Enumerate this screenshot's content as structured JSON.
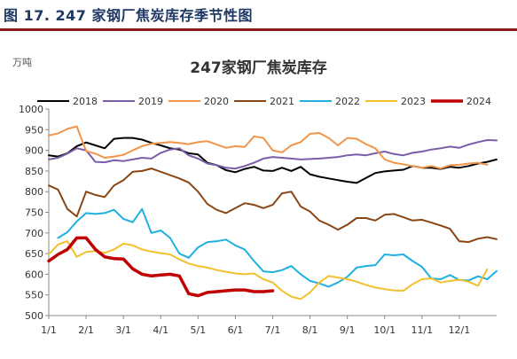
{
  "figure": {
    "label": "图 17.",
    "title": "247 家钢厂焦炭库存季节性图"
  },
  "chart_data": {
    "type": "line",
    "title": "247家钢厂焦炭库存",
    "unit": "万吨",
    "xlabel": "",
    "ylabel": "",
    "ylim": [
      500,
      1000
    ],
    "yticks": [
      500,
      550,
      600,
      650,
      700,
      750,
      800,
      850,
      900,
      950,
      1000
    ],
    "xlim": [
      0,
      12
    ],
    "xticks": [
      {
        "x": 0,
        "label": "1/1"
      },
      {
        "x": 1,
        "label": "2/1"
      },
      {
        "x": 2,
        "label": "3/1"
      },
      {
        "x": 3,
        "label": "4/1"
      },
      {
        "x": 4,
        "label": "5/1"
      },
      {
        "x": 5,
        "label": "6/1"
      },
      {
        "x": 6,
        "label": "7/1"
      },
      {
        "x": 7,
        "label": "8/1"
      },
      {
        "x": 8,
        "label": "9/1"
      },
      {
        "x": 9,
        "label": "10/1"
      },
      {
        "x": 10,
        "label": "11/1"
      },
      {
        "x": 11,
        "label": "12/1"
      }
    ],
    "x_unit_note": "x in months since 1/1",
    "legend_position": "top",
    "grid": false,
    "series": [
      {
        "name": "2018",
        "color": "#000000",
        "width": 2,
        "x": [
          0.0,
          0.25,
          0.5,
          0.75,
          1.0,
          1.25,
          1.5,
          1.75,
          2.0,
          2.25,
          2.5,
          2.75,
          3.0,
          3.25,
          3.5,
          3.75,
          4.0,
          4.25,
          4.5,
          4.75,
          5.0,
          5.25,
          5.5,
          5.75,
          6.0,
          6.25,
          6.5,
          6.75,
          7.0,
          7.25,
          7.5,
          7.75,
          8.0,
          8.25,
          8.5,
          8.75,
          9.0,
          9.25,
          9.5,
          9.75,
          10.0,
          10.25,
          10.5,
          10.75,
          11.0,
          11.25,
          11.5,
          11.75,
          12.0
        ],
        "y": [
          888,
          885,
          893,
          910,
          919,
          912,
          905,
          928,
          930,
          930,
          926,
          918,
          912,
          905,
          902,
          893,
          890,
          870,
          864,
          852,
          847,
          855,
          860,
          851,
          850,
          858,
          850,
          860,
          842,
          836,
          832,
          828,
          824,
          821,
          833,
          845,
          849,
          851,
          853,
          862,
          858,
          858,
          855,
          860,
          858,
          862,
          868,
          872,
          878
        ]
      },
      {
        "name": "2019",
        "color": "#7b5ea7",
        "width": 2,
        "x": [
          0.0,
          0.25,
          0.5,
          0.75,
          1.0,
          1.25,
          1.5,
          1.75,
          2.0,
          2.25,
          2.5,
          2.75,
          3.0,
          3.25,
          3.5,
          3.75,
          4.0,
          4.25,
          4.5,
          4.75,
          5.0,
          5.25,
          5.5,
          5.75,
          6.0,
          6.25,
          6.5,
          6.75,
          7.0,
          7.25,
          7.5,
          7.75,
          8.0,
          8.25,
          8.5,
          8.75,
          9.0,
          9.25,
          9.5,
          9.75,
          10.0,
          10.25,
          10.5,
          10.75,
          11.0,
          11.25,
          11.5,
          11.75,
          12.0
        ],
        "y": [
          878,
          882,
          892,
          905,
          900,
          872,
          871,
          876,
          874,
          878,
          882,
          880,
          894,
          902,
          905,
          888,
          880,
          868,
          864,
          858,
          856,
          862,
          870,
          880,
          884,
          882,
          880,
          878,
          879,
          880,
          882,
          884,
          888,
          890,
          888,
          893,
          897,
          891,
          888,
          894,
          897,
          902,
          905,
          909,
          906,
          914,
          920,
          925,
          924
        ]
      },
      {
        "name": "2020",
        "color": "#f0954a",
        "width": 2,
        "x": [
          0.0,
          0.25,
          0.5,
          0.75,
          1.0,
          1.25,
          1.5,
          1.75,
          2.0,
          2.25,
          2.5,
          2.75,
          3.0,
          3.25,
          3.5,
          3.75,
          4.0,
          4.25,
          4.5,
          4.75,
          5.0,
          5.25,
          5.5,
          5.75,
          6.0,
          6.25,
          6.5,
          6.75,
          7.0,
          7.25,
          7.5,
          7.75,
          8.0,
          8.25,
          8.5,
          8.75,
          9.0,
          9.25,
          9.5,
          9.75,
          10.0,
          10.25,
          10.5,
          10.75,
          11.0,
          11.25,
          11.5,
          11.75
        ],
        "y": [
          936,
          941,
          952,
          958,
          898,
          892,
          882,
          885,
          889,
          900,
          910,
          916,
          918,
          920,
          918,
          915,
          920,
          922,
          914,
          906,
          910,
          908,
          934,
          930,
          900,
          895,
          912,
          920,
          940,
          942,
          930,
          912,
          930,
          928,
          915,
          905,
          878,
          870,
          866,
          862,
          858,
          862,
          856,
          864,
          865,
          868,
          870,
          865
        ]
      },
      {
        "name": "2021",
        "color": "#8b4513",
        "width": 2,
        "x": [
          0.0,
          0.25,
          0.5,
          0.75,
          1.0,
          1.25,
          1.5,
          1.75,
          2.0,
          2.25,
          2.5,
          2.75,
          3.0,
          3.25,
          3.5,
          3.75,
          4.0,
          4.25,
          4.5,
          4.75,
          5.0,
          5.25,
          5.5,
          5.75,
          6.0,
          6.25,
          6.5,
          6.75,
          7.0,
          7.25,
          7.5,
          7.75,
          8.0,
          8.25,
          8.5,
          8.75,
          9.0,
          9.25,
          9.5,
          9.75,
          10.0,
          10.25,
          10.5,
          10.75,
          11.0,
          11.25,
          11.5,
          11.75,
          12.0
        ],
        "y": [
          815,
          805,
          758,
          740,
          800,
          792,
          787,
          815,
          828,
          848,
          850,
          856,
          848,
          840,
          832,
          822,
          800,
          770,
          756,
          748,
          760,
          772,
          768,
          760,
          768,
          796,
          800,
          764,
          752,
          730,
          720,
          708,
          720,
          736,
          736,
          730,
          744,
          746,
          738,
          730,
          732,
          725,
          718,
          710,
          680,
          678,
          686,
          690,
          685
        ]
      },
      {
        "name": "2022",
        "color": "#1fb0e0",
        "width": 2,
        "x": [
          0.25,
          0.5,
          0.75,
          1.0,
          1.25,
          1.5,
          1.75,
          2.0,
          2.25,
          2.5,
          2.75,
          3.0,
          3.25,
          3.5,
          3.75,
          4.0,
          4.25,
          4.5,
          4.75,
          5.0,
          5.25,
          5.5,
          5.75,
          6.0,
          6.25,
          6.5,
          6.75,
          7.0,
          7.25,
          7.5,
          7.75,
          8.0,
          8.25,
          8.5,
          8.75,
          9.0,
          9.25,
          9.5,
          9.75,
          10.0,
          10.25,
          10.5,
          10.75,
          11.0,
          11.25,
          11.5,
          11.75,
          12.0
        ],
        "y": [
          688,
          702,
          728,
          748,
          746,
          748,
          756,
          734,
          726,
          758,
          700,
          706,
          688,
          650,
          640,
          665,
          678,
          680,
          684,
          670,
          660,
          632,
          607,
          605,
          610,
          620,
          600,
          584,
          578,
          570,
          580,
          594,
          616,
          620,
          622,
          648,
          646,
          648,
          632,
          618,
          590,
          588,
          598,
          586,
          585,
          595,
          588,
          608
        ]
      },
      {
        "name": "2023",
        "color": "#f2c12e",
        "width": 2,
        "x": [
          0.0,
          0.25,
          0.5,
          0.75,
          1.0,
          1.25,
          1.5,
          1.75,
          2.0,
          2.25,
          2.5,
          2.75,
          3.0,
          3.25,
          3.5,
          3.75,
          4.0,
          4.25,
          4.5,
          4.75,
          5.0,
          5.25,
          5.5,
          5.75,
          6.0,
          6.25,
          6.5,
          6.75,
          7.0,
          7.25,
          7.5,
          7.75,
          8.0,
          8.25,
          8.5,
          8.75,
          9.0,
          9.25,
          9.5,
          9.75,
          10.0,
          10.25,
          10.5,
          10.75,
          11.0,
          11.25,
          11.5,
          11.75
        ],
        "y": [
          648,
          672,
          680,
          642,
          654,
          656,
          652,
          660,
          674,
          670,
          660,
          655,
          651,
          648,
          636,
          626,
          620,
          616,
          610,
          606,
          602,
          600,
          602,
          588,
          580,
          560,
          546,
          540,
          556,
          580,
          596,
          592,
          588,
          582,
          574,
          568,
          564,
          561,
          560,
          576,
          588,
          590,
          580,
          584,
          587,
          582,
          572,
          612
        ]
      },
      {
        "name": "2024",
        "color": "#c00000",
        "width": 3.5,
        "x": [
          0.0,
          0.25,
          0.5,
          0.75,
          1.0,
          1.25,
          1.5,
          1.75,
          2.0,
          2.25,
          2.5,
          2.75,
          3.0,
          3.25,
          3.5,
          3.75,
          4.0,
          4.25,
          4.5,
          4.75,
          5.0,
          5.25,
          5.5,
          5.75,
          6.0
        ],
        "y": [
          632,
          648,
          660,
          688,
          688,
          660,
          642,
          638,
          637,
          613,
          600,
          596,
          598,
          600,
          596,
          553,
          548,
          556,
          558,
          560,
          562,
          562,
          558,
          558,
          560
        ]
      }
    ]
  }
}
